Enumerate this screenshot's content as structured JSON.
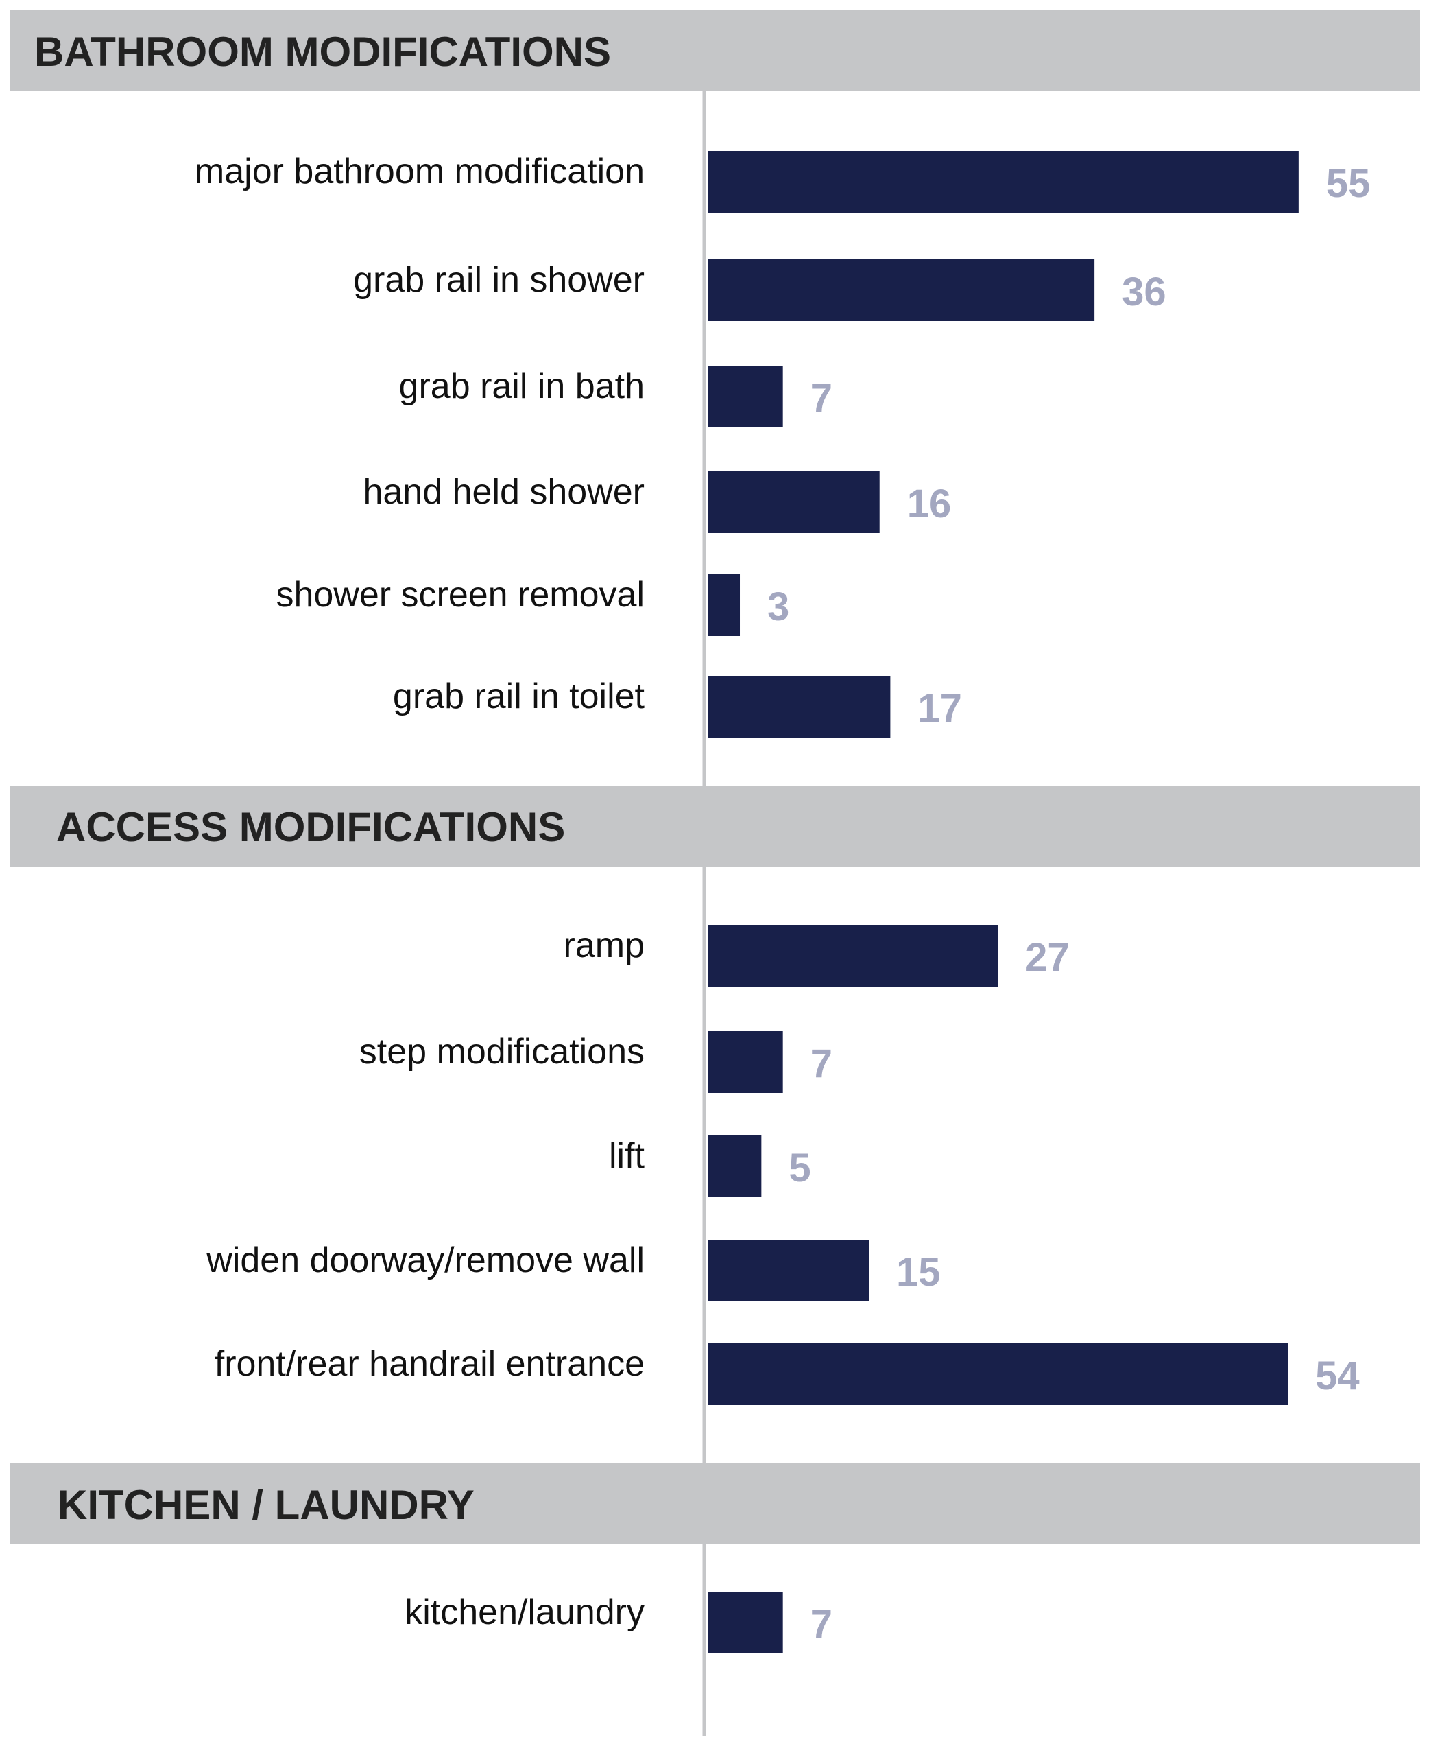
{
  "colors": {
    "bar": "#18204a",
    "value_label": "#a3a7c0",
    "band": "#c5c6c8"
  },
  "chart_data": {
    "type": "bar",
    "orientation": "horizontal",
    "grid": false,
    "xlim": [
      0,
      60
    ],
    "sections": [
      {
        "title": "BATHROOM MODIFICATIONS",
        "categories": [
          "major bathroom modification",
          "grab rail in shower",
          "grab rail in bath",
          "hand held shower",
          "shower screen removal",
          "grab rail in toilet"
        ],
        "values": [
          55,
          36,
          7,
          16,
          3,
          17
        ]
      },
      {
        "title": "ACCESS MODIFICATIONS",
        "categories": [
          "ramp",
          "step modifications",
          "lift",
          "widen doorway/remove wall",
          "front/rear handrail entrance"
        ],
        "values": [
          27,
          7,
          5,
          15,
          54
        ]
      },
      {
        "title": "KITCHEN / LAUNDRY",
        "categories": [
          "kitchen/laundry"
        ],
        "values": [
          7
        ]
      }
    ]
  }
}
